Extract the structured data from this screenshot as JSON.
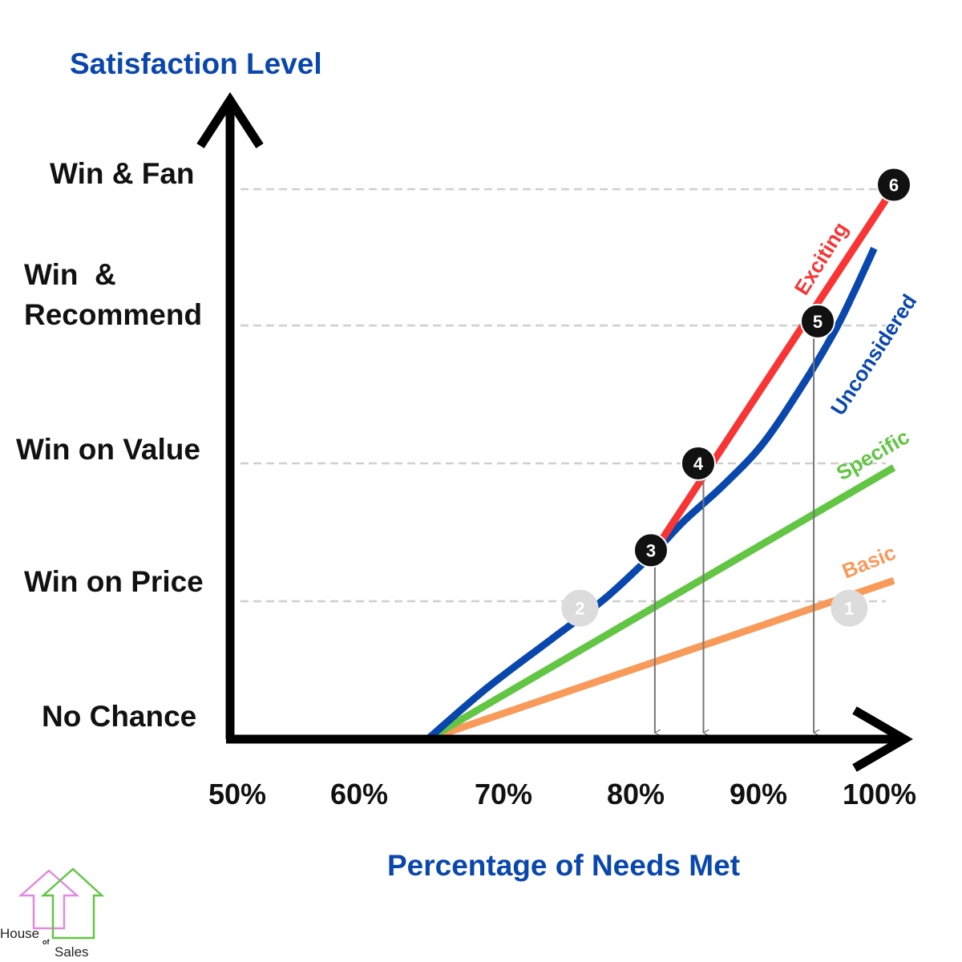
{
  "chart_data": {
    "type": "line",
    "title": "",
    "ylabel": "Satisfaction Level",
    "xlabel": "Percentage of Needs Met",
    "x_ticks": [
      "50%",
      "60%",
      "70%",
      "80%",
      "90%",
      "100%"
    ],
    "y_levels": [
      {
        "label": "No Chance",
        "value": 0
      },
      {
        "label": "Win on Price",
        "value": 1
      },
      {
        "label": "Win on Value",
        "value": 2
      },
      {
        "label": "Win  &",
        "label2": "Recommend",
        "value": 3
      },
      {
        "label": "Win & Fan",
        "value": 4
      }
    ],
    "xlim": [
      50,
      100
    ],
    "ylim": [
      0,
      5
    ],
    "series": [
      {
        "name": "Basic",
        "color": "#f89a5a",
        "x": [
          64.5,
          100
        ],
        "y": [
          0,
          1.15
        ]
      },
      {
        "name": "Specific",
        "color": "#62c544",
        "x": [
          64.5,
          100
        ],
        "y": [
          0,
          1.97
        ]
      },
      {
        "name": "Unconsidered",
        "color": "#0a47ad",
        "x": [
          64.5,
          69,
          74,
          78,
          81.5,
          84,
          87,
          90,
          93,
          95.5,
          97,
          98.5
        ],
        "y": [
          0,
          0.37,
          0.73,
          1.02,
          1.33,
          1.58,
          1.84,
          2.14,
          2.56,
          2.96,
          3.25,
          3.56
        ]
      },
      {
        "name": "Exciting",
        "color": "#f83434",
        "x": [
          82,
          100
        ],
        "y": [
          1.4,
          4
        ]
      }
    ],
    "markers": [
      {
        "label": "1",
        "x": 96.6,
        "y": 0.95,
        "style": "grey"
      },
      {
        "label": "2",
        "x": 76.1,
        "y": 0.95,
        "style": "grey"
      },
      {
        "label": "3",
        "x": 81.5,
        "y": 1.37,
        "style": "black"
      },
      {
        "label": "4",
        "x": 85.1,
        "y": 2.0,
        "style": "black"
      },
      {
        "label": "5",
        "x": 94.2,
        "y": 3.03,
        "style": "black"
      },
      {
        "label": "6",
        "x": 100,
        "y": 4.02,
        "style": "black"
      }
    ],
    "drop_lines": [
      81.8,
      85.5,
      93.9
    ],
    "grid": "dashed horizontal at level values"
  },
  "logo": {
    "line1": "House",
    "line2": "of",
    "line3": "Sales"
  }
}
